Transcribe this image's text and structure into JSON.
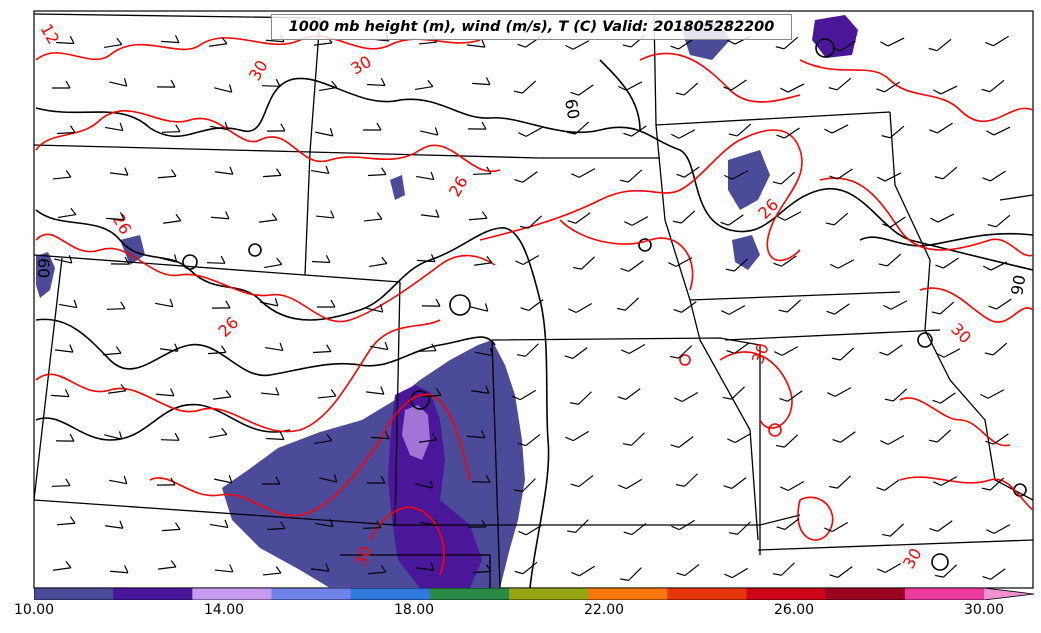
{
  "title": "1000 mb height (m), wind (m/s), T (C) Valid: 201805282200",
  "contour_labels": {
    "temperature": [
      "12",
      "30",
      "26",
      "26",
      "26",
      "26",
      "30",
      "30",
      "30",
      "30",
      "30"
    ],
    "height": [
      "60",
      "60",
      "90"
    ]
  },
  "colorbar": {
    "tick_labels": [
      "10.00",
      "14.00",
      "18.00",
      "22.00",
      "26.00",
      "30.00"
    ],
    "colors": [
      "#4b4b9a",
      "#4a169a",
      "#c79cf0",
      "#6f83e8",
      "#2f7adc",
      "#2a8a46",
      "#96a514",
      "#f7790d",
      "#e8360c",
      "#ce0418",
      "#9a0322",
      "#ec3aa0",
      "#f490d2"
    ]
  },
  "colors": {
    "temperature_contour": "#ff0000",
    "height_contour": "#000000",
    "state_border": "#000000",
    "wind_barb": "#000000",
    "shaded_low": "#4b4b9a",
    "shaded_mid": "#4a169a"
  }
}
